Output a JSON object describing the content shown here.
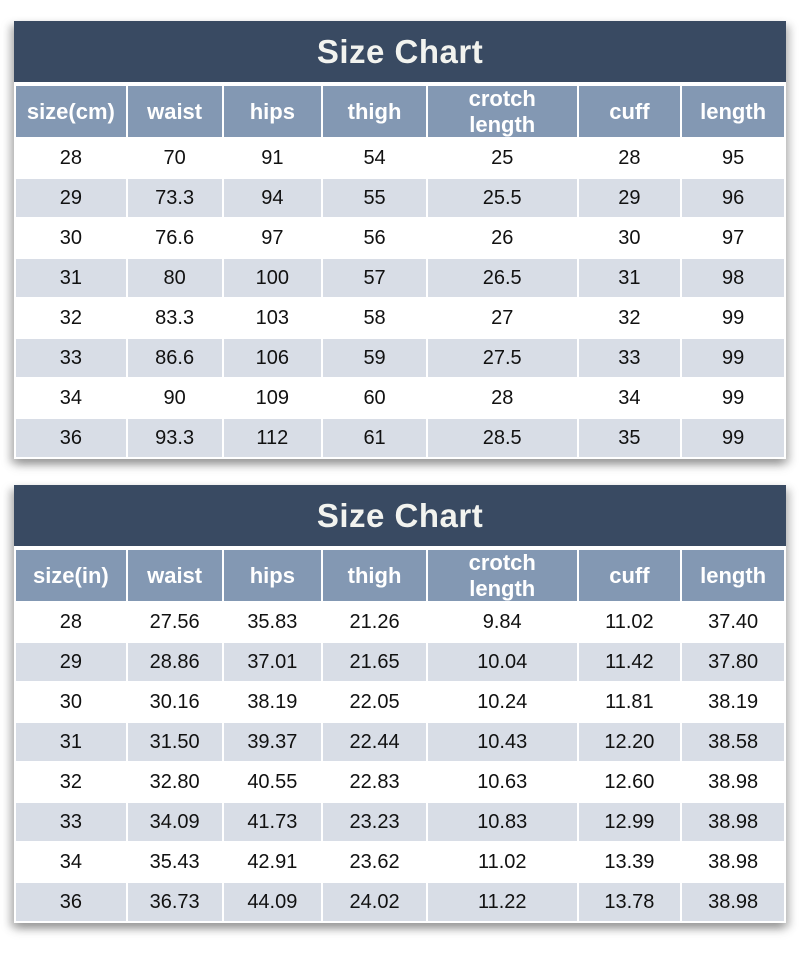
{
  "colors": {
    "title_bg": "#394a62",
    "title_text": "#f2f3ef",
    "header_bg": "#8398b3",
    "header_text": "#ffffff",
    "row_bg": "#ffffff",
    "row_alt_bg": "#d8dde6",
    "cell_text": "#111111"
  },
  "chart_data": [
    {
      "type": "table",
      "title": "Size Chart",
      "unit_label": "size(cm)",
      "columns": [
        "size(cm)",
        "waist",
        "hips",
        "thigh",
        "crotch\nlength",
        "cuff",
        "length"
      ],
      "rows": [
        [
          "28",
          "70",
          "91",
          "54",
          "25",
          "28",
          "95"
        ],
        [
          "29",
          "73.3",
          "94",
          "55",
          "25.5",
          "29",
          "96"
        ],
        [
          "30",
          "76.6",
          "97",
          "56",
          "26",
          "30",
          "97"
        ],
        [
          "31",
          "80",
          "100",
          "57",
          "26.5",
          "31",
          "98"
        ],
        [
          "32",
          "83.3",
          "103",
          "58",
          "27",
          "32",
          "99"
        ],
        [
          "33",
          "86.6",
          "106",
          "59",
          "27.5",
          "33",
          "99"
        ],
        [
          "34",
          "90",
          "109",
          "60",
          "28",
          "34",
          "99"
        ],
        [
          "36",
          "93.3",
          "112",
          "61",
          "28.5",
          "35",
          "99"
        ]
      ]
    },
    {
      "type": "table",
      "title": "Size Chart",
      "unit_label": "size(in)",
      "columns": [
        "size(in)",
        "waist",
        "hips",
        "thigh",
        "crotch\nlength",
        "cuff",
        "length"
      ],
      "rows": [
        [
          "28",
          "27.56",
          "35.83",
          "21.26",
          "9.84",
          "11.02",
          "37.40"
        ],
        [
          "29",
          "28.86",
          "37.01",
          "21.65",
          "10.04",
          "11.42",
          "37.80"
        ],
        [
          "30",
          "30.16",
          "38.19",
          "22.05",
          "10.24",
          "11.81",
          "38.19"
        ],
        [
          "31",
          "31.50",
          "39.37",
          "22.44",
          "10.43",
          "12.20",
          "38.58"
        ],
        [
          "32",
          "32.80",
          "40.55",
          "22.83",
          "10.63",
          "12.60",
          "38.98"
        ],
        [
          "33",
          "34.09",
          "41.73",
          "23.23",
          "10.83",
          "12.99",
          "38.98"
        ],
        [
          "34",
          "35.43",
          "42.91",
          "23.62",
          "11.02",
          "13.39",
          "38.98"
        ],
        [
          "36",
          "36.73",
          "44.09",
          "24.02",
          "11.22",
          "13.78",
          "38.98"
        ]
      ]
    }
  ]
}
